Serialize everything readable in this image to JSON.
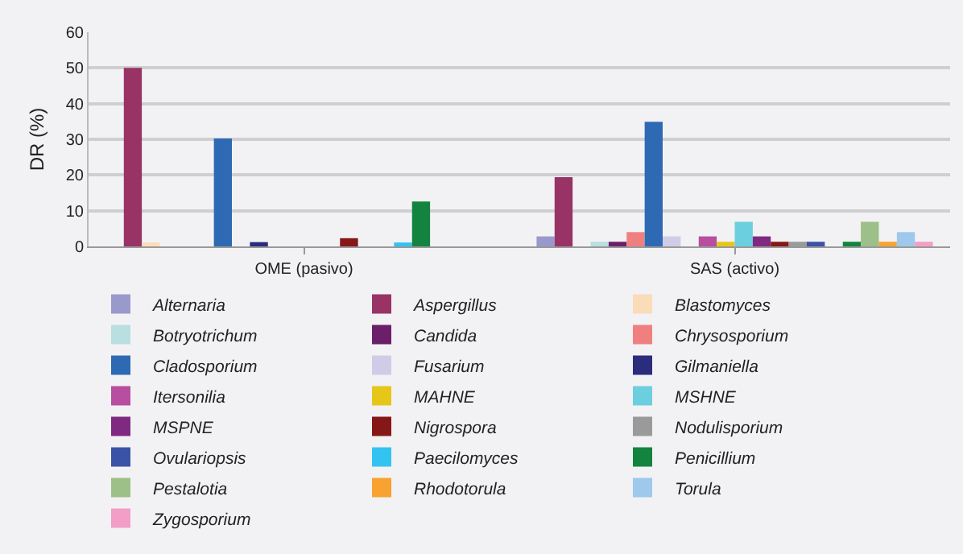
{
  "chart_data": {
    "type": "bar",
    "ylabel": "DR (%)",
    "categories": [
      "OME (pasivo)",
      "SAS (activo)"
    ],
    "ylim": [
      0,
      60
    ],
    "yticks": [
      0,
      10,
      20,
      30,
      40,
      50,
      60
    ],
    "grid": "y",
    "legend": "bottom",
    "series": [
      {
        "name": "Alternaria",
        "color": "#9999cc",
        "values": [
          0,
          2.8
        ]
      },
      {
        "name": "Aspergillus",
        "color": "#993366",
        "values": [
          50,
          19.4
        ]
      },
      {
        "name": "Blastomyces",
        "color": "#fadcb8",
        "values": [
          1.1,
          0
        ]
      },
      {
        "name": "Botryotrichum",
        "color": "#b9dfe0",
        "values": [
          0,
          1.3
        ]
      },
      {
        "name": "Candida",
        "color": "#6b1f6b",
        "values": [
          0,
          1.3
        ]
      },
      {
        "name": "Chrysosporium",
        "color": "#f08080",
        "values": [
          0,
          4
        ]
      },
      {
        "name": "Cladosporium",
        "color": "#2e6ab4",
        "values": [
          30.2,
          34.9
        ]
      },
      {
        "name": "Fusarium",
        "color": "#d0cce8",
        "values": [
          0,
          2.8
        ]
      },
      {
        "name": "Gilmaniella",
        "color": "#2b2c7c",
        "values": [
          1.2,
          0
        ]
      },
      {
        "name": "Itersonilia",
        "color": "#b84ea0",
        "values": [
          0,
          2.8
        ]
      },
      {
        "name": "MAHNE",
        "color": "#e6c619",
        "values": [
          0,
          1.3
        ]
      },
      {
        "name": "MSHNE",
        "color": "#6ccfdf",
        "values": [
          0,
          6.9
        ]
      },
      {
        "name": "MSPNE",
        "color": "#7f2a80",
        "values": [
          0,
          2.8
        ]
      },
      {
        "name": "Nigrospora",
        "color": "#861717",
        "values": [
          2.3,
          1.3
        ]
      },
      {
        "name": "Nodulisporium",
        "color": "#9a9a9a",
        "values": [
          0,
          1.3
        ]
      },
      {
        "name": "Ovulariopsis",
        "color": "#3b53a4",
        "values": [
          0,
          1.3
        ]
      },
      {
        "name": "Paecilomyces",
        "color": "#33c3f0",
        "values": [
          1.1,
          0
        ]
      },
      {
        "name": "Penicillium",
        "color": "#13843f",
        "values": [
          12.6,
          1.3
        ]
      },
      {
        "name": "Pestalotia",
        "color": "#9dbf88",
        "values": [
          0,
          6.9
        ]
      },
      {
        "name": "Rhodotorula",
        "color": "#f7a231",
        "values": [
          0,
          1.3
        ]
      },
      {
        "name": "Torula",
        "color": "#9ec9ec",
        "values": [
          0,
          4
        ]
      },
      {
        "name": "Zygosporium",
        "color": "#f29ec6",
        "values": [
          0,
          1.3
        ]
      }
    ]
  }
}
